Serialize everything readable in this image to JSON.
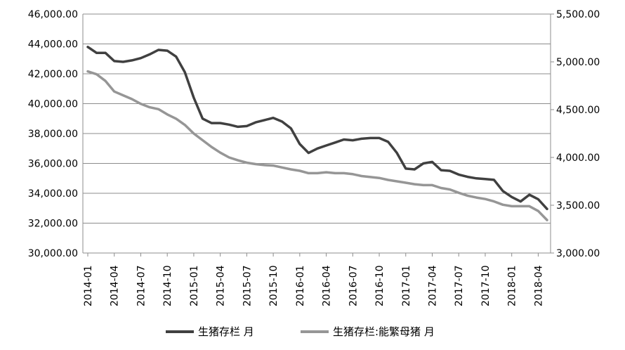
{
  "chart_data": {
    "type": "line",
    "x": [
      "2014-01",
      "2014-02",
      "2014-03",
      "2014-04",
      "2014-05",
      "2014-06",
      "2014-07",
      "2014-08",
      "2014-09",
      "2014-10",
      "2014-11",
      "2014-12",
      "2015-01",
      "2015-02",
      "2015-03",
      "2015-04",
      "2015-05",
      "2015-06",
      "2015-07",
      "2015-08",
      "2015-09",
      "2015-10",
      "2015-11",
      "2015-12",
      "2016-01",
      "2016-02",
      "2016-03",
      "2016-04",
      "2016-05",
      "2016-06",
      "2016-07",
      "2016-08",
      "2016-09",
      "2016-10",
      "2016-11",
      "2016-12",
      "2017-01",
      "2017-02",
      "2017-03",
      "2017-04",
      "2017-05",
      "2017-06",
      "2017-07",
      "2017-08",
      "2017-09",
      "2017-10",
      "2017-11",
      "2017-12",
      "2018-01",
      "2018-02",
      "2018-03",
      "2018-04",
      "2018-05"
    ],
    "x_tick_labels": [
      "2014-01",
      "2014-04",
      "2014-07",
      "2014-10",
      "2015-01",
      "2015-04",
      "2015-07",
      "2015-10",
      "2016-01",
      "2016-04",
      "2016-07",
      "2016-10",
      "2017-01",
      "2017-04",
      "2017-07",
      "2017-10",
      "2018-01",
      "2018-04"
    ],
    "left_axis": {
      "ylim": [
        30000,
        46000
      ],
      "ticks": [
        "30,000.00",
        "32,000.00",
        "34,000.00",
        "36,000.00",
        "38,000.00",
        "40,000.00",
        "42,000.00",
        "44,000.00",
        "46,000.00"
      ]
    },
    "right_axis": {
      "ylim": [
        3000,
        5500
      ],
      "ticks": [
        "3,000.00",
        "3,500.00",
        "4,000.00",
        "4,500.00",
        "5,000.00",
        "5,500.00"
      ]
    },
    "series": [
      {
        "name": "生猪存栏 月",
        "axis": "left",
        "color": "#404040",
        "values": [
          43800,
          43400,
          43400,
          42850,
          42800,
          42900,
          43050,
          43300,
          43600,
          43550,
          43150,
          42100,
          40400,
          39000,
          38700,
          38700,
          38600,
          38450,
          38500,
          38750,
          38900,
          39050,
          38800,
          38350,
          37300,
          36700,
          37000,
          37200,
          37400,
          37600,
          37550,
          37650,
          37700,
          37700,
          37450,
          36700,
          35650,
          35600,
          36000,
          36100,
          35550,
          35500,
          35250,
          35100,
          35000,
          34950,
          34900,
          34150,
          33750,
          33450,
          33900,
          33600,
          32950
        ]
      },
      {
        "name": "生猪存栏:能繁母猪 月",
        "axis": "right",
        "color": "#969696",
        "values": [
          4900,
          4870,
          4800,
          4690,
          4650,
          4610,
          4560,
          4525,
          4505,
          4450,
          4405,
          4340,
          4250,
          4180,
          4110,
          4050,
          4000,
          3970,
          3945,
          3930,
          3920,
          3915,
          3895,
          3875,
          3860,
          3835,
          3835,
          3845,
          3835,
          3835,
          3825,
          3805,
          3795,
          3785,
          3765,
          3750,
          3735,
          3720,
          3710,
          3710,
          3680,
          3665,
          3630,
          3600,
          3580,
          3565,
          3540,
          3505,
          3490,
          3490,
          3490,
          3440,
          3345
        ]
      }
    ],
    "grid": "horizontal",
    "legend_position": "bottom"
  }
}
